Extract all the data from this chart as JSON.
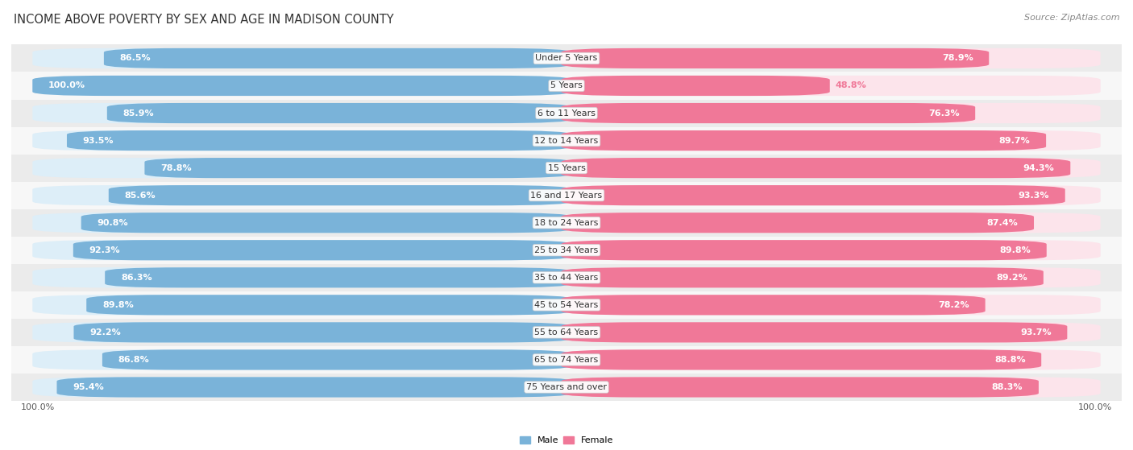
{
  "title": "INCOME ABOVE POVERTY BY SEX AND AGE IN MADISON COUNTY",
  "source": "Source: ZipAtlas.com",
  "categories": [
    "Under 5 Years",
    "5 Years",
    "6 to 11 Years",
    "12 to 14 Years",
    "15 Years",
    "16 and 17 Years",
    "18 to 24 Years",
    "25 to 34 Years",
    "35 to 44 Years",
    "45 to 54 Years",
    "55 to 64 Years",
    "65 to 74 Years",
    "75 Years and over"
  ],
  "male_values": [
    86.5,
    100.0,
    85.9,
    93.5,
    78.8,
    85.6,
    90.8,
    92.3,
    86.3,
    89.8,
    92.2,
    86.8,
    95.4
  ],
  "female_values": [
    78.9,
    48.8,
    76.3,
    89.7,
    94.3,
    93.3,
    87.4,
    89.8,
    89.2,
    78.2,
    93.7,
    88.8,
    88.3
  ],
  "male_color": "#7ab3d9",
  "female_color": "#f07898",
  "male_bg_color": "#ddeef8",
  "female_bg_color": "#fce4eb",
  "row_bg_even": "#ebebeb",
  "row_bg_odd": "#f7f7f7",
  "bar_height": 0.72,
  "max_value": 100.0,
  "title_fontsize": 10.5,
  "label_fontsize": 8.0,
  "value_fontsize": 8.0,
  "tick_fontsize": 8.0,
  "source_fontsize": 8.0,
  "cat_fontsize": 8.0
}
